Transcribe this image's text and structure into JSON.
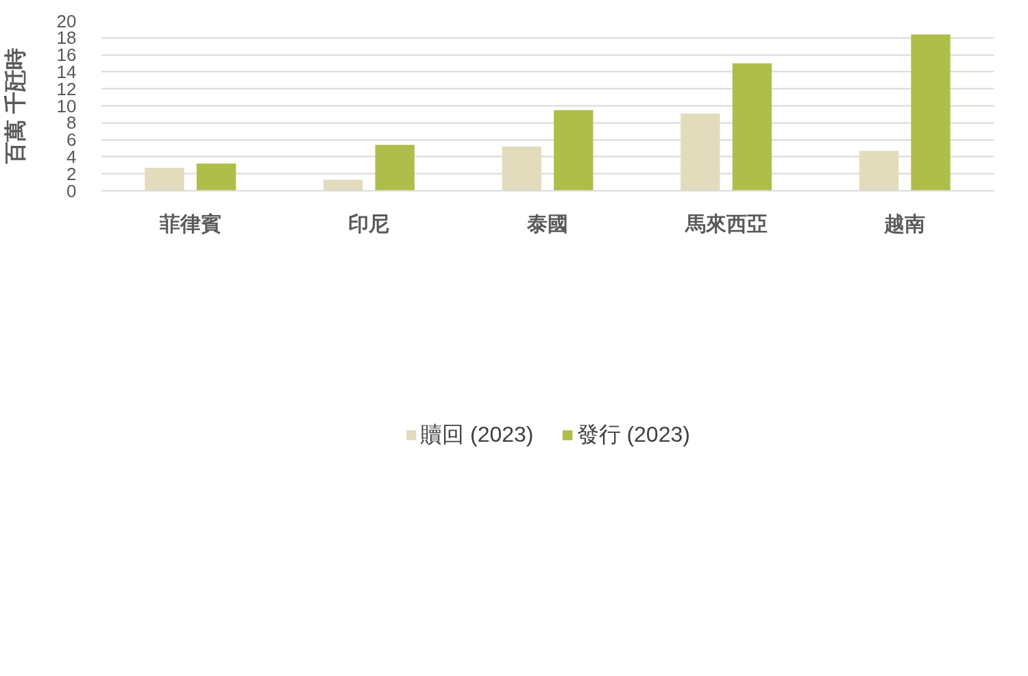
{
  "chart_data": {
    "type": "bar",
    "ylabel": "百萬 千瓩時",
    "categories": [
      "菲律賓",
      "印尼",
      "泰國",
      "馬來西亞",
      "越南"
    ],
    "series": [
      {
        "name": "贖回 (2023)",
        "color": "#e2dcbd",
        "values": [
          2.7,
          1.3,
          5.2,
          9.1,
          4.7
        ]
      },
      {
        "name": "發行 (2023)",
        "color": "#afbd4a",
        "values": [
          3.2,
          5.4,
          9.5,
          15.0,
          18.4
        ]
      }
    ],
    "ylim": [
      0,
      20
    ],
    "yticks": [
      0,
      2,
      4,
      6,
      8,
      10,
      12,
      14,
      16,
      18,
      20
    ],
    "grid": "y",
    "legend": "bottom"
  }
}
